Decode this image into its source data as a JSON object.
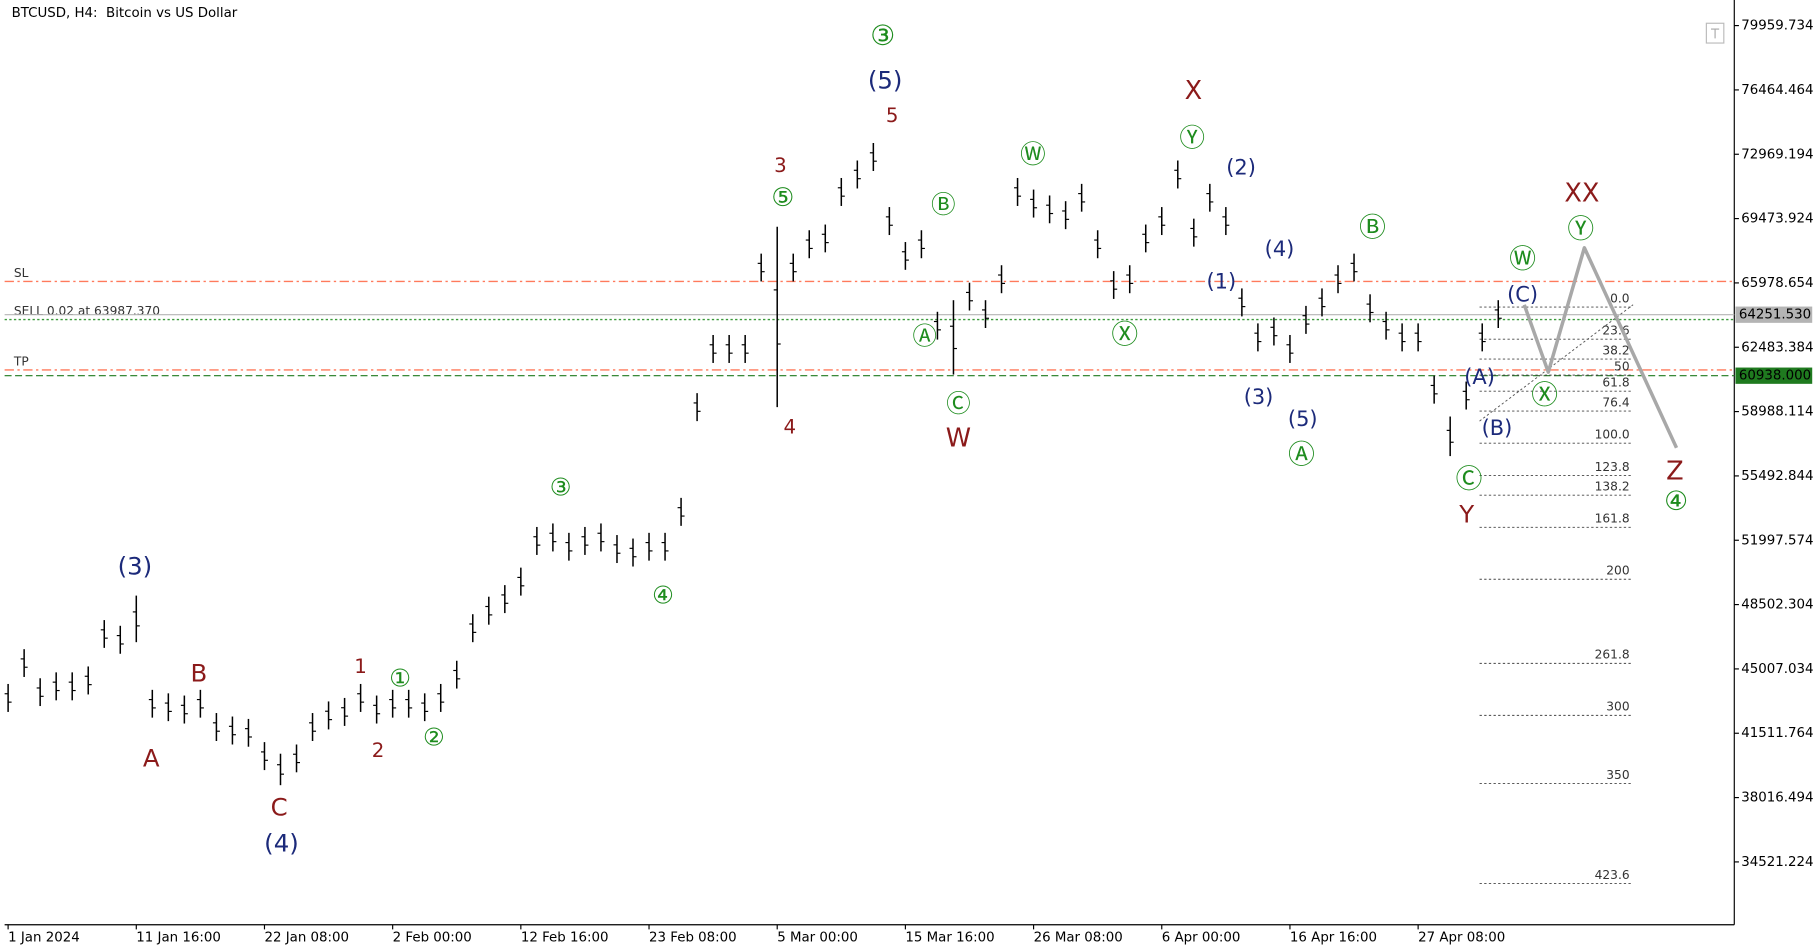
{
  "chart_data": {
    "type": "ohlc",
    "title": "BTCUSD, H4:  Bitcoin vs US Dollar",
    "bar_color": "#000000",
    "x": [
      0,
      8,
      16,
      24,
      32,
      40,
      48,
      56,
      64,
      72,
      80,
      88,
      96,
      104,
      112,
      120,
      128,
      136,
      144,
      152,
      160,
      168,
      176,
      184,
      192,
      200,
      208,
      216,
      224,
      232,
      240,
      248,
      256,
      264,
      272,
      280,
      288,
      296,
      304,
      312,
      320,
      328,
      336,
      344,
      352,
      360,
      368,
      376,
      384,
      392,
      400,
      408,
      416,
      424,
      432,
      440,
      448,
      456,
      464,
      472,
      480,
      488,
      496,
      504,
      512,
      520,
      528,
      536,
      544,
      552,
      560,
      568,
      576,
      584,
      592,
      600,
      608,
      616,
      624,
      632,
      640,
      648,
      656,
      664,
      672,
      680,
      688,
      696,
      704,
      712,
      720,
      728,
      736,
      744
    ],
    "high": [
      44190,
      46080,
      44500,
      44820,
      44820,
      45140,
      47660,
      47350,
      48990,
      43870,
      43680,
      43560,
      43870,
      42610,
      42420,
      42290,
      41030,
      40400,
      40900,
      42610,
      43240,
      43430,
      44190,
      43560,
      43870,
      43870,
      43680,
      44190,
      45450,
      47980,
      48930,
      49560,
      50510,
      52720,
      52910,
      52400,
      52720,
      52910,
      52280,
      52090,
      52400,
      52400,
      54300,
      59990,
      63150,
      63150,
      63150,
      67570,
      69030,
      67570,
      68840,
      69150,
      71680,
      72630,
      73580,
      70100,
      68200,
      68840,
      64410,
      65040,
      65990,
      65040,
      66940,
      71680,
      71050,
      70730,
      70420,
      71360,
      68840,
      66620,
      66940,
      69150,
      70100,
      72630,
      69470,
      71360,
      70100,
      65680,
      63780,
      64100,
      63150,
      64730,
      65680,
      66940,
      67570,
      65360,
      64410,
      63780,
      63780,
      60940,
      58720,
      60620,
      63780,
      65040
    ],
    "low": [
      42670,
      44570,
      42990,
      43300,
      43300,
      43620,
      46150,
      45830,
      46460,
      42360,
      42170,
      42040,
      42360,
      41090,
      40900,
      40780,
      39510,
      38690,
      39390,
      41090,
      41720,
      41910,
      42670,
      42040,
      42360,
      42360,
      42170,
      42670,
      43940,
      46460,
      47410,
      48040,
      48990,
      51200,
      51390,
      50890,
      51200,
      51390,
      50760,
      50570,
      50890,
      50890,
      52780,
      58470,
      61630,
      61630,
      61630,
      66060,
      59230,
      66060,
      67320,
      67640,
      70160,
      71110,
      72060,
      68580,
      66690,
      67320,
      62900,
      61000,
      64480,
      63530,
      65420,
      70160,
      69530,
      69220,
      68900,
      69850,
      67320,
      65110,
      65420,
      67640,
      68580,
      71110,
      67950,
      69850,
      68580,
      64160,
      62260,
      62580,
      61630,
      63210,
      64160,
      65420,
      66060,
      63840,
      62900,
      62260,
      62260,
      59420,
      56570,
      59100,
      62260,
      63530
    ],
    "xlim": [
      0,
      863
    ],
    "xticks": [
      {
        "value": 0,
        "label": "1 Jan 2024"
      },
      {
        "value": 64,
        "label": "11 Jan 16:00"
      },
      {
        "value": 128,
        "label": "22 Jan 08:00"
      },
      {
        "value": 192,
        "label": "2 Feb 00:00"
      },
      {
        "value": 256,
        "label": "12 Feb 16:00"
      },
      {
        "value": 320,
        "label": "23 Feb 08:00"
      },
      {
        "value": 384,
        "label": "5 Mar 00:00"
      },
      {
        "value": 448,
        "label": "15 Mar 16:00"
      },
      {
        "value": 512,
        "label": "26 Mar 08:00"
      },
      {
        "value": 576,
        "label": "6 Apr 00:00"
      },
      {
        "value": 640,
        "label": "16 Apr 16:00"
      },
      {
        "value": 704,
        "label": "27 Apr 08:00"
      }
    ],
    "ylim": [
      31108,
      81350
    ],
    "yticks": [
      79959.734,
      76464.464,
      72969.194,
      69473.924,
      65978.654,
      62483.384,
      58988.114,
      55492.844,
      51997.574,
      48502.304,
      45007.034,
      41511.764,
      38016.494,
      34521.224
    ],
    "lines": [
      {
        "name": "SL",
        "value": 66060,
        "color": "#ff7a5c",
        "style": "dashdot"
      },
      {
        "name": "SELL 0.02 at 63987.370",
        "value": 63987.37,
        "color": "#3a9a3a",
        "style": "dot"
      },
      {
        "name": "TP",
        "value": 61250,
        "color": "#ff7a5c",
        "style": "dashdot"
      }
    ],
    "price_tags": [
      {
        "value": 64251.53,
        "label": "64251.530",
        "color": "#b4b4b4"
      },
      {
        "value": 60938,
        "label": "60938.000",
        "color": "#1f7a1f"
      }
    ],
    "fib_levels": [
      {
        "value": 0,
        "label": "0.0"
      },
      23.6,
      38.2,
      50,
      61.8,
      76.4,
      {
        "value": 100,
        "label": "100.0"
      },
      123.8,
      138.2,
      161.8,
      200,
      261.8,
      300,
      350,
      423.6
    ],
    "projection": {
      "x": [
        757,
        769,
        787,
        833
      ],
      "values": [
        64790,
        61130,
        67890,
        57020
      ],
      "color": "#a8a8a8"
    },
    "annotations": [
      {
        "text": "③",
        "color": "#1e8c1e"
      },
      {
        "text": "(5)",
        "color": "#1c2a7a"
      },
      {
        "text": "5",
        "color": "#8b1a1a"
      },
      {
        "text": "3",
        "color": "#8b1a1a"
      },
      {
        "text": "⑤",
        "color": "#1e8c1e"
      },
      {
        "text": "4",
        "color": "#8b1a1a"
      },
      {
        "text": "Ⓑ",
        "color": "#1e8c1e"
      },
      {
        "text": "Ⓐ",
        "color": "#1e8c1e"
      },
      {
        "text": "Ⓒ",
        "color": "#1e8c1e"
      },
      {
        "text": "W",
        "color": "#8b1a1a"
      },
      {
        "text": "Ⓦ",
        "color": "#1e8c1e"
      },
      {
        "text": "X",
        "color": "#8b1a1a"
      },
      {
        "text": "Ⓨ",
        "color": "#1e8c1e"
      },
      {
        "text": "(2)",
        "color": "#1c2a7a"
      },
      {
        "text": "(4)",
        "color": "#1c2a7a"
      },
      {
        "text": "(1)",
        "color": "#1c2a7a"
      },
      {
        "text": "(3)",
        "color": "#1c2a7a"
      },
      {
        "text": "(5)",
        "color": "#1c2a7a"
      },
      {
        "text": "Ⓐ",
        "color": "#1e8c1e"
      },
      {
        "text": "Ⓧ",
        "color": "#1e8c1e"
      },
      {
        "text": "Ⓑ",
        "color": "#1e8c1e"
      },
      {
        "text": "Ⓦ",
        "color": "#1e8c1e"
      },
      {
        "text": "(C)",
        "color": "#1c2a7a"
      },
      {
        "text": "(A)",
        "color": "#1c2a7a"
      },
      {
        "text": "Ⓧ",
        "color": "#1e8c1e"
      },
      {
        "text": "(B)",
        "color": "#1c2a7a"
      },
      {
        "text": "Ⓒ",
        "color": "#1e8c1e"
      },
      {
        "text": "Y",
        "color": "#8b1a1a"
      },
      {
        "text": "XX",
        "color": "#8b1a1a"
      },
      {
        "text": "Ⓨ",
        "color": "#1e8c1e"
      },
      {
        "text": "Z",
        "color": "#8b1a1a"
      },
      {
        "text": "④",
        "color": "#1e8c1e"
      },
      {
        "text": "(3)",
        "color": "#1c2a7a"
      },
      {
        "text": "B",
        "color": "#8b1a1a"
      },
      {
        "text": "A",
        "color": "#8b1a1a"
      },
      {
        "text": "C",
        "color": "#8b1a1a"
      },
      {
        "text": "(4)",
        "color": "#1c2a7a"
      },
      {
        "text": "1",
        "color": "#8b1a1a"
      },
      {
        "text": "①",
        "color": "#1e8c1e"
      },
      {
        "text": "2",
        "color": "#8b1a1a"
      },
      {
        "text": "②",
        "color": "#1e8c1e"
      },
      {
        "text": "③",
        "color": "#1e8c1e"
      },
      {
        "text": "④",
        "color": "#1e8c1e"
      }
    ]
  }
}
